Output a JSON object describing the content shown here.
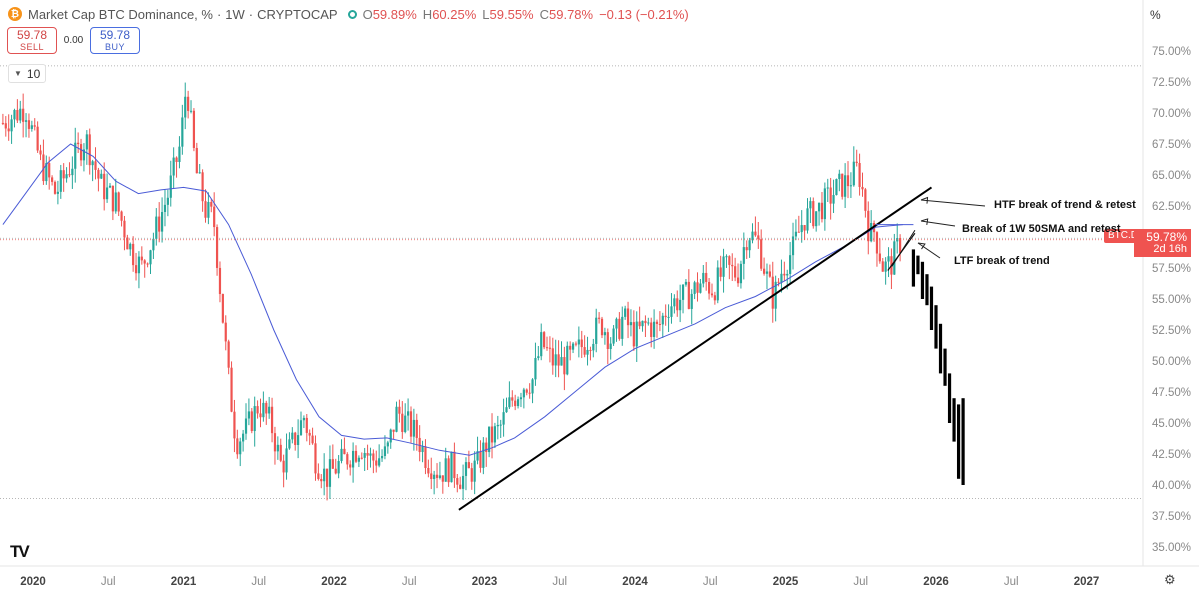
{
  "header": {
    "logo_glyph": "₿",
    "title": "Market Cap BTC Dominance, %",
    "interval": "1W",
    "source": "CRYPTOCAP",
    "open_label": "O",
    "open": "59.89%",
    "high_label": "H",
    "high": "60.25%",
    "low_label": "L",
    "low": "59.55%",
    "close_label": "C",
    "close": "59.78%",
    "change": "−0.13 (−0.21%)",
    "status_color": "#26a69a",
    "value_color": "#e05252"
  },
  "trade": {
    "sell_price": "59.78",
    "sell_label": "SELL",
    "spread": "0.00",
    "buy_price": "59.78",
    "buy_label": "BUY"
  },
  "indicator": {
    "value": "10",
    "icon": "chevron-down-icon"
  },
  "axis_unit": "%",
  "price_label": {
    "symbol": "BTC.D",
    "value": "59.78%",
    "countdown": "2d 16h",
    "color": "#ef5350"
  },
  "annotations": {
    "htf": "HTF break of trend & retest",
    "sma": "Break of 1W 50SMA and retest",
    "ltf": "LTF break of trend"
  },
  "chart_data": {
    "type": "candlestick",
    "title": "Market Cap BTC Dominance, %",
    "interval": "1W",
    "source": "CRYPTOCAP",
    "ylim": [
      34.8,
      76.2
    ],
    "y_ticks": [
      "35.00%",
      "37.50%",
      "40.00%",
      "42.50%",
      "45.00%",
      "47.50%",
      "50.00%",
      "52.50%",
      "55.00%",
      "57.50%",
      "60.00%",
      "62.50%",
      "65.00%",
      "67.50%",
      "70.00%",
      "72.50%",
      "75.00%"
    ],
    "x_ticks": [
      {
        "label": "2020",
        "t": 2020.0
      },
      {
        "label": "Jul",
        "t": 2020.5
      },
      {
        "label": "2021",
        "t": 2021.0
      },
      {
        "label": "Jul",
        "t": 2021.5
      },
      {
        "label": "2022",
        "t": 2022.0
      },
      {
        "label": "Jul",
        "t": 2022.5
      },
      {
        "label": "2023",
        "t": 2023.0
      },
      {
        "label": "Jul",
        "t": 2023.5
      },
      {
        "label": "2024",
        "t": 2024.0
      },
      {
        "label": "Jul",
        "t": 2024.5
      },
      {
        "label": "2025",
        "t": 2025.0
      },
      {
        "label": "Jul",
        "t": 2025.5
      },
      {
        "label": "2026",
        "t": 2026.0
      },
      {
        "label": "Jul",
        "t": 2026.5
      },
      {
        "label": "2027",
        "t": 2027.0
      }
    ],
    "xlim": [
      2019.79,
      2027.5
    ],
    "grid": false,
    "up_color": "#26a69a",
    "down_color": "#ef5350",
    "price_path": [
      [
        2019.8,
        69.2
      ],
      [
        2019.95,
        70.5
      ],
      [
        2020.05,
        66.0
      ],
      [
        2020.15,
        63.5
      ],
      [
        2020.25,
        65.8
      ],
      [
        2020.35,
        68.0
      ],
      [
        2020.45,
        64.2
      ],
      [
        2020.55,
        62.8
      ],
      [
        2020.65,
        59.0
      ],
      [
        2020.72,
        57.5
      ],
      [
        2020.8,
        60.0
      ],
      [
        2020.9,
        63.5
      ],
      [
        2020.98,
        67.5
      ],
      [
        2021.02,
        72.5
      ],
      [
        2021.08,
        65.5
      ],
      [
        2021.15,
        62.0
      ],
      [
        2021.2,
        61.5
      ],
      [
        2021.25,
        55.0
      ],
      [
        2021.3,
        48.5
      ],
      [
        2021.35,
        43.5
      ],
      [
        2021.42,
        44.5
      ],
      [
        2021.5,
        46.5
      ],
      [
        2021.58,
        45.0
      ],
      [
        2021.65,
        41.5
      ],
      [
        2021.72,
        43.2
      ],
      [
        2021.8,
        45.5
      ],
      [
        2021.88,
        42.0
      ],
      [
        2021.95,
        40.6
      ],
      [
        2022.02,
        41.5
      ],
      [
        2022.1,
        42.4
      ],
      [
        2022.18,
        43.2
      ],
      [
        2022.25,
        42.0
      ],
      [
        2022.35,
        42.5
      ],
      [
        2022.42,
        46.0
      ],
      [
        2022.48,
        45.0
      ],
      [
        2022.55,
        44.0
      ],
      [
        2022.62,
        42.0
      ],
      [
        2022.7,
        41.0
      ],
      [
        2022.78,
        41.5
      ],
      [
        2022.85,
        40.5
      ],
      [
        2022.95,
        41.5
      ],
      [
        2023.02,
        43.5
      ],
      [
        2023.1,
        44.5
      ],
      [
        2023.18,
        46.8
      ],
      [
        2023.25,
        48.0
      ],
      [
        2023.32,
        48.5
      ],
      [
        2023.38,
        51.5
      ],
      [
        2023.45,
        50.0
      ],
      [
        2023.52,
        49.8
      ],
      [
        2023.6,
        50.5
      ],
      [
        2023.7,
        52.0
      ],
      [
        2023.78,
        53.0
      ],
      [
        2023.85,
        51.5
      ],
      [
        2023.92,
        53.5
      ],
      [
        2024.0,
        52.0
      ],
      [
        2024.08,
        53.0
      ],
      [
        2024.15,
        52.5
      ],
      [
        2024.22,
        54.5
      ],
      [
        2024.3,
        55.0
      ],
      [
        2024.38,
        55.5
      ],
      [
        2024.45,
        56.5
      ],
      [
        2024.52,
        55.8
      ],
      [
        2024.6,
        57.5
      ],
      [
        2024.68,
        57.0
      ],
      [
        2024.75,
        60.5
      ],
      [
        2024.82,
        59.5
      ],
      [
        2024.88,
        56.5
      ],
      [
        2024.92,
        55.0
      ],
      [
        2024.98,
        57.5
      ],
      [
        2025.05,
        59.0
      ],
      [
        2025.12,
        61.5
      ],
      [
        2025.2,
        62.0
      ],
      [
        2025.28,
        63.0
      ],
      [
        2025.35,
        64.0
      ],
      [
        2025.42,
        64.5
      ],
      [
        2025.48,
        65.5
      ],
      [
        2025.5,
        64.5
      ],
      [
        2025.53,
        62.5
      ],
      [
        2025.56,
        60.0
      ],
      [
        2025.59,
        60.5
      ],
      [
        2025.62,
        59.0
      ],
      [
        2025.65,
        57.5
      ],
      [
        2025.7,
        57.8
      ],
      [
        2025.74,
        59.0
      ],
      [
        2025.77,
        59.78
      ]
    ],
    "sma50_path": [
      [
        2019.8,
        61.0
      ],
      [
        2019.95,
        63.5
      ],
      [
        2020.1,
        66.0
      ],
      [
        2020.25,
        67.5
      ],
      [
        2020.4,
        66.5
      ],
      [
        2020.55,
        64.5
      ],
      [
        2020.7,
        63.5
      ],
      [
        2020.85,
        63.8
      ],
      [
        2021.0,
        64.0
      ],
      [
        2021.15,
        63.7
      ],
      [
        2021.3,
        61.0
      ],
      [
        2021.45,
        57.0
      ],
      [
        2021.6,
        52.5
      ],
      [
        2021.75,
        48.5
      ],
      [
        2021.9,
        45.5
      ],
      [
        2022.05,
        44.0
      ],
      [
        2022.2,
        43.7
      ],
      [
        2022.35,
        43.8
      ],
      [
        2022.5,
        43.4
      ],
      [
        2022.7,
        42.8
      ],
      [
        2022.9,
        42.4
      ],
      [
        2023.05,
        43.0
      ],
      [
        2023.2,
        43.8
      ],
      [
        2023.4,
        45.5
      ],
      [
        2023.6,
        47.5
      ],
      [
        2023.8,
        49.5
      ],
      [
        2024.0,
        51.0
      ],
      [
        2024.2,
        52.0
      ],
      [
        2024.4,
        53.0
      ],
      [
        2024.6,
        54.3
      ],
      [
        2024.8,
        55.2
      ],
      [
        2025.0,
        56.5
      ],
      [
        2025.2,
        58.0
      ],
      [
        2025.4,
        59.3
      ],
      [
        2025.6,
        60.8
      ],
      [
        2025.78,
        61.0
      ]
    ],
    "trendline": [
      [
        2022.83,
        38.0
      ],
      [
        2025.97,
        64.0
      ]
    ],
    "ltf_trendline": [
      [
        2025.68,
        57.3
      ],
      [
        2025.86,
        60.3
      ]
    ],
    "sma_retest_line": [
      [
        2025.6,
        61.0
      ],
      [
        2025.85,
        61.0
      ]
    ],
    "projection_bars": [
      {
        "t": 2025.85,
        "open": 59.0,
        "close": 56.0
      },
      {
        "t": 2025.88,
        "open": 58.5,
        "close": 57.0
      },
      {
        "t": 2025.91,
        "open": 58.0,
        "close": 55.0
      },
      {
        "t": 2025.94,
        "open": 57.0,
        "close": 54.5
      },
      {
        "t": 2025.97,
        "open": 56.0,
        "close": 52.5
      },
      {
        "t": 2026.0,
        "open": 54.5,
        "close": 51.0
      },
      {
        "t": 2026.03,
        "open": 53.0,
        "close": 49.0
      },
      {
        "t": 2026.06,
        "open": 51.0,
        "close": 48.0
      },
      {
        "t": 2026.09,
        "open": 49.0,
        "close": 45.0
      },
      {
        "t": 2026.12,
        "open": 47.0,
        "close": 43.5
      },
      {
        "t": 2026.15,
        "open": 46.5,
        "close": 40.5
      },
      {
        "t": 2026.18,
        "open": 47.0,
        "close": 40.0
      }
    ],
    "horizontal_levels": [
      73.8,
      59.9,
      38.9
    ],
    "current_value": 59.78
  }
}
